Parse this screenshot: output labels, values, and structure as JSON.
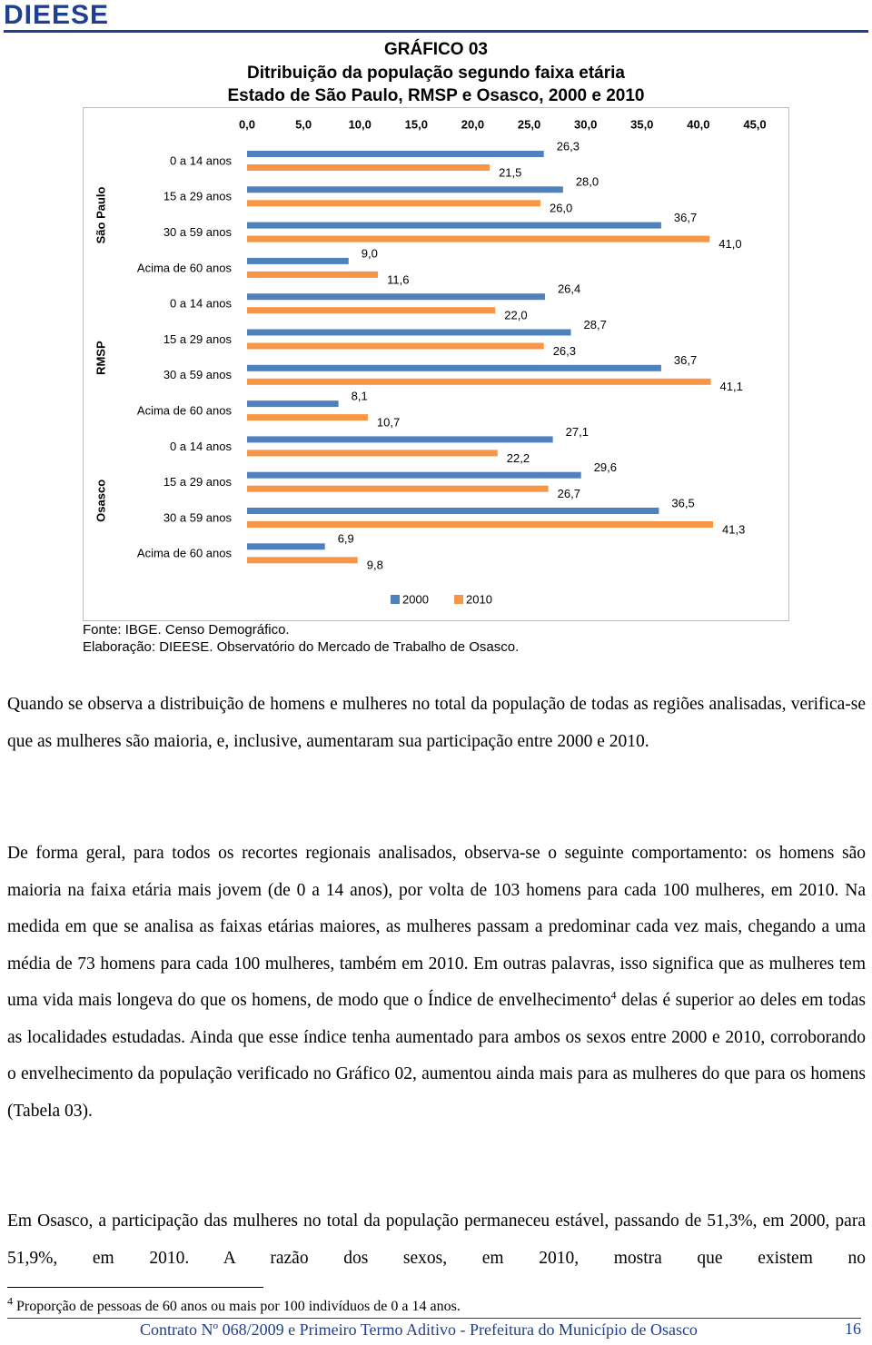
{
  "header": {
    "logo": "DIEESE"
  },
  "chart_title": [
    "GRÁFICO 03",
    "Ditribuição da população segundo faixa etária",
    "Estado de São Paulo, RMSP e Osasco, 2000 e 2010"
  ],
  "chart_data": {
    "type": "bar",
    "orientation": "horizontal",
    "groups": [
      "São Paulo",
      "RMSP",
      "Osasco"
    ],
    "categories": [
      "0 a 14 anos",
      "15 a 29 anos",
      "30 a 59 anos",
      "Acima de 60 anos",
      "0 a 14 anos",
      "15 a 29 anos",
      "30 a 59 anos",
      "Acima de 60 anos",
      "0 a 14 anos",
      "15 a 29 anos",
      "30 a 59 anos",
      "Acima de 60 anos"
    ],
    "series": [
      {
        "name": "2000",
        "color": "#4f81bd",
        "values": [
          26.3,
          28.0,
          36.7,
          9.0,
          26.4,
          28.7,
          36.7,
          8.1,
          27.1,
          29.6,
          36.5,
          6.9
        ],
        "value_labels": [
          "26,3",
          "28,0",
          "36,7",
          "9,0",
          "26,4",
          "28,7",
          "36,7",
          "8,1",
          "27,1",
          "29,6",
          "36,5",
          "6,9"
        ]
      },
      {
        "name": "2010",
        "color": "#f79646",
        "values": [
          21.5,
          26.0,
          41.0,
          11.6,
          22.0,
          26.3,
          41.1,
          10.7,
          22.2,
          26.7,
          41.3,
          9.8
        ],
        "value_labels": [
          "21,5",
          "26,0",
          "41,0",
          "11,6",
          "22,0",
          "26,3",
          "41,1",
          "10,7",
          "22,2",
          "26,7",
          "41,3",
          "9,8"
        ]
      }
    ],
    "xlim": [
      0,
      45
    ],
    "xticks": [
      {
        "value": 0,
        "label": "0,0"
      },
      {
        "value": 5,
        "label": "5,0"
      },
      {
        "value": 10,
        "label": "10,0"
      },
      {
        "value": 15,
        "label": "15,0"
      },
      {
        "value": 20,
        "label": "20,0"
      },
      {
        "value": 25,
        "label": "25,0"
      },
      {
        "value": 30,
        "label": "30,0"
      },
      {
        "value": 35,
        "label": "35,0"
      },
      {
        "value": 40,
        "label": "40,0"
      },
      {
        "value": 45,
        "label": "45,0"
      }
    ],
    "legend": "bottom"
  },
  "source": [
    "Fonte: IBGE. Censo Demográfico.",
    "Elaboração: DIEESE. Observatório do Mercado de Trabalho de Osasco."
  ],
  "paragraphs": [
    [
      "Quando se observa a distribuição de homens e mulheres no total da população de todas as regiões analisadas, verifica-se que as mulheres são maioria, e, inclusive, aumentaram sua participação entre 2000 e 2010."
    ],
    [
      "De forma geral, para todos os recortes regionais analisados, observa-se o seguinte comportamento: os homens são maioria na faixa etária mais jovem (de 0 a 14 anos), por volta de 103 homens para cada 100 mulheres, em 2010. Na medida em que se analisa as faixas etárias maiores, as mulheres passam a predominar cada vez mais, chegando a uma média de 73 homens para cada 100 mulheres, também em 2010. Em outras palavras, isso significa que as mulheres tem uma vida mais longeva do que os homens, de modo que o Índice de envelhecimento",
      "4",
      " delas é superior ao deles em todas as localidades estudadas. Ainda que esse índice tenha aumentado para ambos os sexos entre 2000 e 2010, corroborando o envelhecimento da população verificado no Gráfico 02, aumentou ainda mais para as mulheres do que para os homens (Tabela 03)."
    ],
    [
      "Em Osasco, a participação das mulheres no total da população permaneceu estável, passando de 51,3%, em 2000, para 51,9%, em 2010. A razão dos sexos, em 2010, mostra que existem no"
    ]
  ],
  "footnote": {
    "mark": "4",
    "text": " Proporção de pessoas de 60 anos ou mais por 100 indivíduos de 0 a 14 anos."
  },
  "footer": {
    "text": "Contrato Nº 068/2009 e Primeiro Termo Aditivo - Prefeitura do Município de Osasco",
    "page": "16"
  }
}
